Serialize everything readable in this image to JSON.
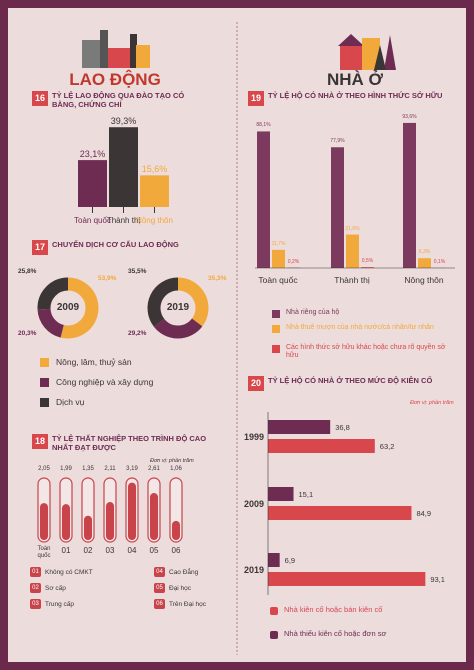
{
  "sections": [
    "LAO ĐỘNG",
    "NHÀ Ở"
  ],
  "chart_data": [
    {
      "type": "bar",
      "number": "16",
      "title": "TỶ LỆ LAO ĐỘNG QUA ĐÀO TẠO CÓ BẰNG, CHỨNG CHỈ",
      "categories": [
        "Toàn quốc",
        "Thành thị",
        "Nông thôn"
      ],
      "values": [
        23.1,
        39.3,
        15.6
      ],
      "value_labels": [
        "23,1%",
        "39,3%",
        "15,6%"
      ],
      "colors": [
        "#6e2c53",
        "#3b3536",
        "#f2a93b"
      ]
    },
    {
      "type": "donut",
      "number": "17",
      "title": "CHUYỂN DỊCH CƠ CẤU LAO ĐỘNG",
      "categories": [
        "Nông, lâm, thuỷ sản",
        "Công nghiệp và xây dựng",
        "Dịch vụ"
      ],
      "colors": [
        "#f2a93b",
        "#6e2c53",
        "#3b3536"
      ],
      "series": [
        {
          "name": "2009",
          "values": [
            53.9,
            20.3,
            25.8
          ],
          "value_labels": [
            "53,9%",
            "20,3%",
            "25,8%"
          ]
        },
        {
          "name": "2019",
          "values": [
            35.3,
            29.2,
            35.5
          ],
          "value_labels": [
            "35,3%",
            "29,2%",
            "35,5%"
          ]
        }
      ]
    },
    {
      "type": "thermometer",
      "number": "18",
      "title": "TỶ LỆ THẤT NGHIỆP THEO TRÌNH ĐỘ CAO NHẤT ĐẠT ĐƯỢC",
      "unit": "Đơn vị: phần trăm",
      "color": "#c9434a",
      "categories": [
        "Toàn quốc",
        "01",
        "02",
        "03",
        "04",
        "05",
        "06"
      ],
      "values": [
        2.05,
        1.99,
        1.35,
        2.11,
        3.19,
        2.61,
        1.06
      ],
      "value_labels": [
        "2,05",
        "1,99",
        "1,35",
        "2,11",
        "3,19",
        "2,61",
        "1,06"
      ],
      "legend": [
        {
          "code": "01",
          "label": "Không có CMKT"
        },
        {
          "code": "02",
          "label": "Sơ cấp"
        },
        {
          "code": "03",
          "label": "Trung cấp"
        },
        {
          "code": "04",
          "label": "Cao Đẳng"
        },
        {
          "code": "05",
          "label": "Đại học"
        },
        {
          "code": "06",
          "label": "Trên Đại học"
        }
      ]
    },
    {
      "type": "grouped_bar",
      "number": "19",
      "title": "TỶ LỆ HỘ CÓ NHÀ Ở THEO HÌNH THỨC SỞ HỮU",
      "categories": [
        "Toàn quốc",
        "Thành thị",
        "Nông thôn"
      ],
      "series": [
        {
          "name": "Nhà riêng của hộ",
          "color": "#7b3a5e",
          "values": [
            88.1,
            77.9,
            93.6
          ],
          "value_labels": [
            "88,1%",
            "77,9%",
            "93,6%"
          ]
        },
        {
          "name": "Nhà thuê mượn của nhà nước/cá nhân/tư nhân",
          "color": "#f2a93b",
          "values": [
            11.7,
            21.6,
            6.3
          ],
          "value_labels": [
            "11,7%",
            "21,6%",
            "6,3%"
          ]
        },
        {
          "name": "Các hình thức sở hữu khác hoặc chưa rõ quyền sở hữu",
          "color": "#d8474c",
          "values": [
            0.2,
            0.5,
            0.1
          ],
          "value_labels": [
            "0,2%",
            "0,5%",
            "0,1%"
          ]
        }
      ]
    },
    {
      "type": "horizontal_bar",
      "number": "20",
      "title": "TỶ LỆ HỘ CÓ NHÀ Ở THEO MỨC ĐỘ KIÊN CỐ",
      "unit": "Đơn vị: phần trăm",
      "categories": [
        "1999",
        "2009",
        "2019"
      ],
      "series": [
        {
          "name": "Nhà kiên cố hoặc bán kiên cố",
          "color": "#d8474c",
          "values": [
            63.2,
            84.9,
            93.1
          ],
          "value_labels": [
            "63,2",
            "84,9",
            "93,1"
          ]
        },
        {
          "name": "Nhà thiếu kiên cố hoặc đơn sơ",
          "color": "#6e2c53",
          "values": [
            36.8,
            15.1,
            6.9
          ],
          "value_labels": [
            "36,8",
            "15,1",
            "6,9"
          ]
        }
      ]
    }
  ]
}
